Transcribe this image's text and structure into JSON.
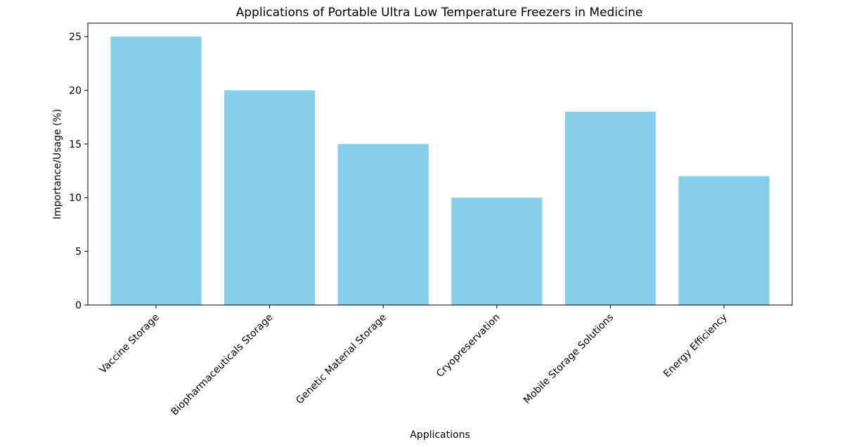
{
  "chart_data": {
    "type": "bar",
    "title": "Applications of Portable Ultra Low Temperature Freezers in Medicine",
    "xlabel": "Applications",
    "ylabel": "Importance/Usage (%)",
    "categories": [
      "Vaccine Storage",
      "Biopharmaceuticals Storage",
      "Genetic Material Storage",
      "Cryopreservation",
      "Mobile Storage Solutions",
      "Energy Efficiency"
    ],
    "values": [
      25,
      20,
      15,
      10,
      18,
      12
    ],
    "ylim": [
      0,
      26.25
    ],
    "yticks": [
      0,
      5,
      10,
      15,
      20,
      25
    ],
    "bar_color": "#87ceeb",
    "grid": false,
    "xtick_rotation": 45
  }
}
